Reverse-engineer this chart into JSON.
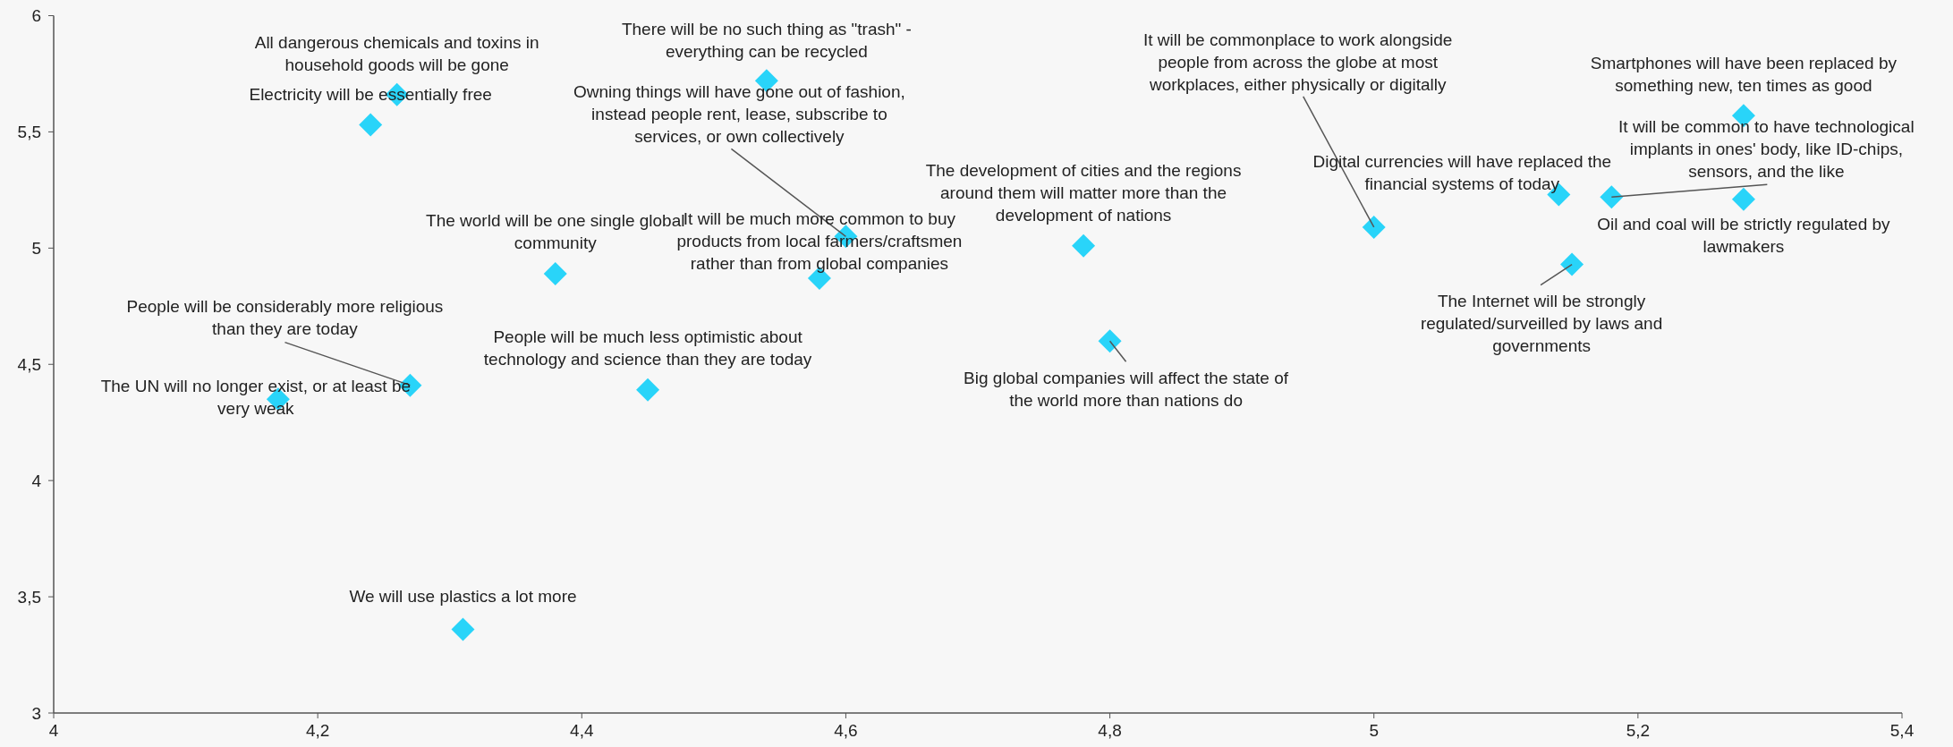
{
  "chart_data": {
    "type": "scatter",
    "marker": "diamond",
    "grid": false,
    "xlim": [
      4,
      5.4
    ],
    "xticks": [
      4,
      {
        "value": 4.2,
        "label": "4,2"
      },
      {
        "value": 4.4,
        "label": "4,4"
      },
      {
        "value": 4.6,
        "label": "4,6"
      },
      {
        "value": 4.8,
        "label": "4,8"
      },
      5,
      {
        "value": 5.2,
        "label": "5,2"
      },
      {
        "value": 5.4,
        "label": "5,4"
      }
    ],
    "ylim": [
      3,
      6
    ],
    "yticks": [
      3,
      {
        "value": 3.5,
        "label": "3,5"
      },
      4,
      {
        "value": 4.5,
        "label": "4,5"
      },
      5,
      {
        "value": 5.5,
        "label": "5,5"
      },
      6
    ],
    "series": [
      {
        "color": "#29d4f9",
        "x": [
          4.26,
          4.24,
          4.38,
          4.27,
          4.17,
          4.45,
          4.31,
          4.54,
          4.6,
          4.58,
          4.78,
          4.8,
          5.0,
          5.14,
          5.18,
          5.28,
          5.28,
          5.15
        ],
        "values": [
          5.66,
          5.53,
          4.89,
          4.41,
          4.35,
          4.39,
          3.36,
          5.72,
          5.05,
          4.87,
          5.01,
          4.6,
          5.09,
          5.23,
          5.22,
          5.57,
          5.21,
          4.93
        ]
      }
    ],
    "annotations": [
      {
        "text": "All dangerous chemicals and toxins in\nhousehold goods will be gone",
        "x": 4.26,
        "y": 5.66
      },
      {
        "text": "Electricity will be essentially free",
        "x": 4.24,
        "y": 5.53
      },
      {
        "text": "The world will be one single global\ncommunity",
        "x": 4.38,
        "y": 4.89
      },
      {
        "text": "People will be considerably more religious\nthan they are today",
        "x": 4.27,
        "y": 4.41
      },
      {
        "text": "The UN will no longer exist, or at least be\nvery weak",
        "x": 4.17,
        "y": 4.35
      },
      {
        "text": "People will be much less optimistic about\ntechnology and science than they are today",
        "x": 4.45,
        "y": 4.39
      },
      {
        "text": "We will use plastics a lot more",
        "x": 4.31,
        "y": 3.36
      },
      {
        "text": "There will be no such thing as \"trash\" -\neverything can be recycled",
        "x": 4.54,
        "y": 5.72
      },
      {
        "text": "Owning things will have gone out of fashion,\ninstead people rent, lease, subscribe to\nservices, or own collectively",
        "x": 4.6,
        "y": 5.05
      },
      {
        "text": "It will be much more common to buy\nproducts from local farmers/craftsmen\nrather than from global companies",
        "x": 4.58,
        "y": 4.87
      },
      {
        "text": "The development of cities and the regions\naround them will matter more than the\ndevelopment of nations",
        "x": 4.78,
        "y": 5.01
      },
      {
        "text": "Big global companies will affect the state of\nthe world more than nations do",
        "x": 4.8,
        "y": 4.6
      },
      {
        "text": "It will be commonplace to work alongside\npeople from across the globe at most\nworkplaces, either physically or digitally",
        "x": 5.0,
        "y": 5.09
      },
      {
        "text": "Digital currencies will have replaced the\nfinancial systems of today",
        "x": 5.14,
        "y": 5.23
      },
      {
        "text": "It will be common to have technological\nimplants in ones' body, like ID-chips,\nsensors, and the like",
        "x": 5.18,
        "y": 5.22
      },
      {
        "text": "Smartphones will have been replaced by\nsomething new, ten times as good",
        "x": 5.28,
        "y": 5.57
      },
      {
        "text": "Oil and coal will be strictly regulated by\nlawmakers",
        "x": 5.28,
        "y": 5.21
      },
      {
        "text": "The Internet will be strongly\nregulated/surveilled by laws and\ngovernments",
        "x": 5.15,
        "y": 4.93
      }
    ]
  }
}
